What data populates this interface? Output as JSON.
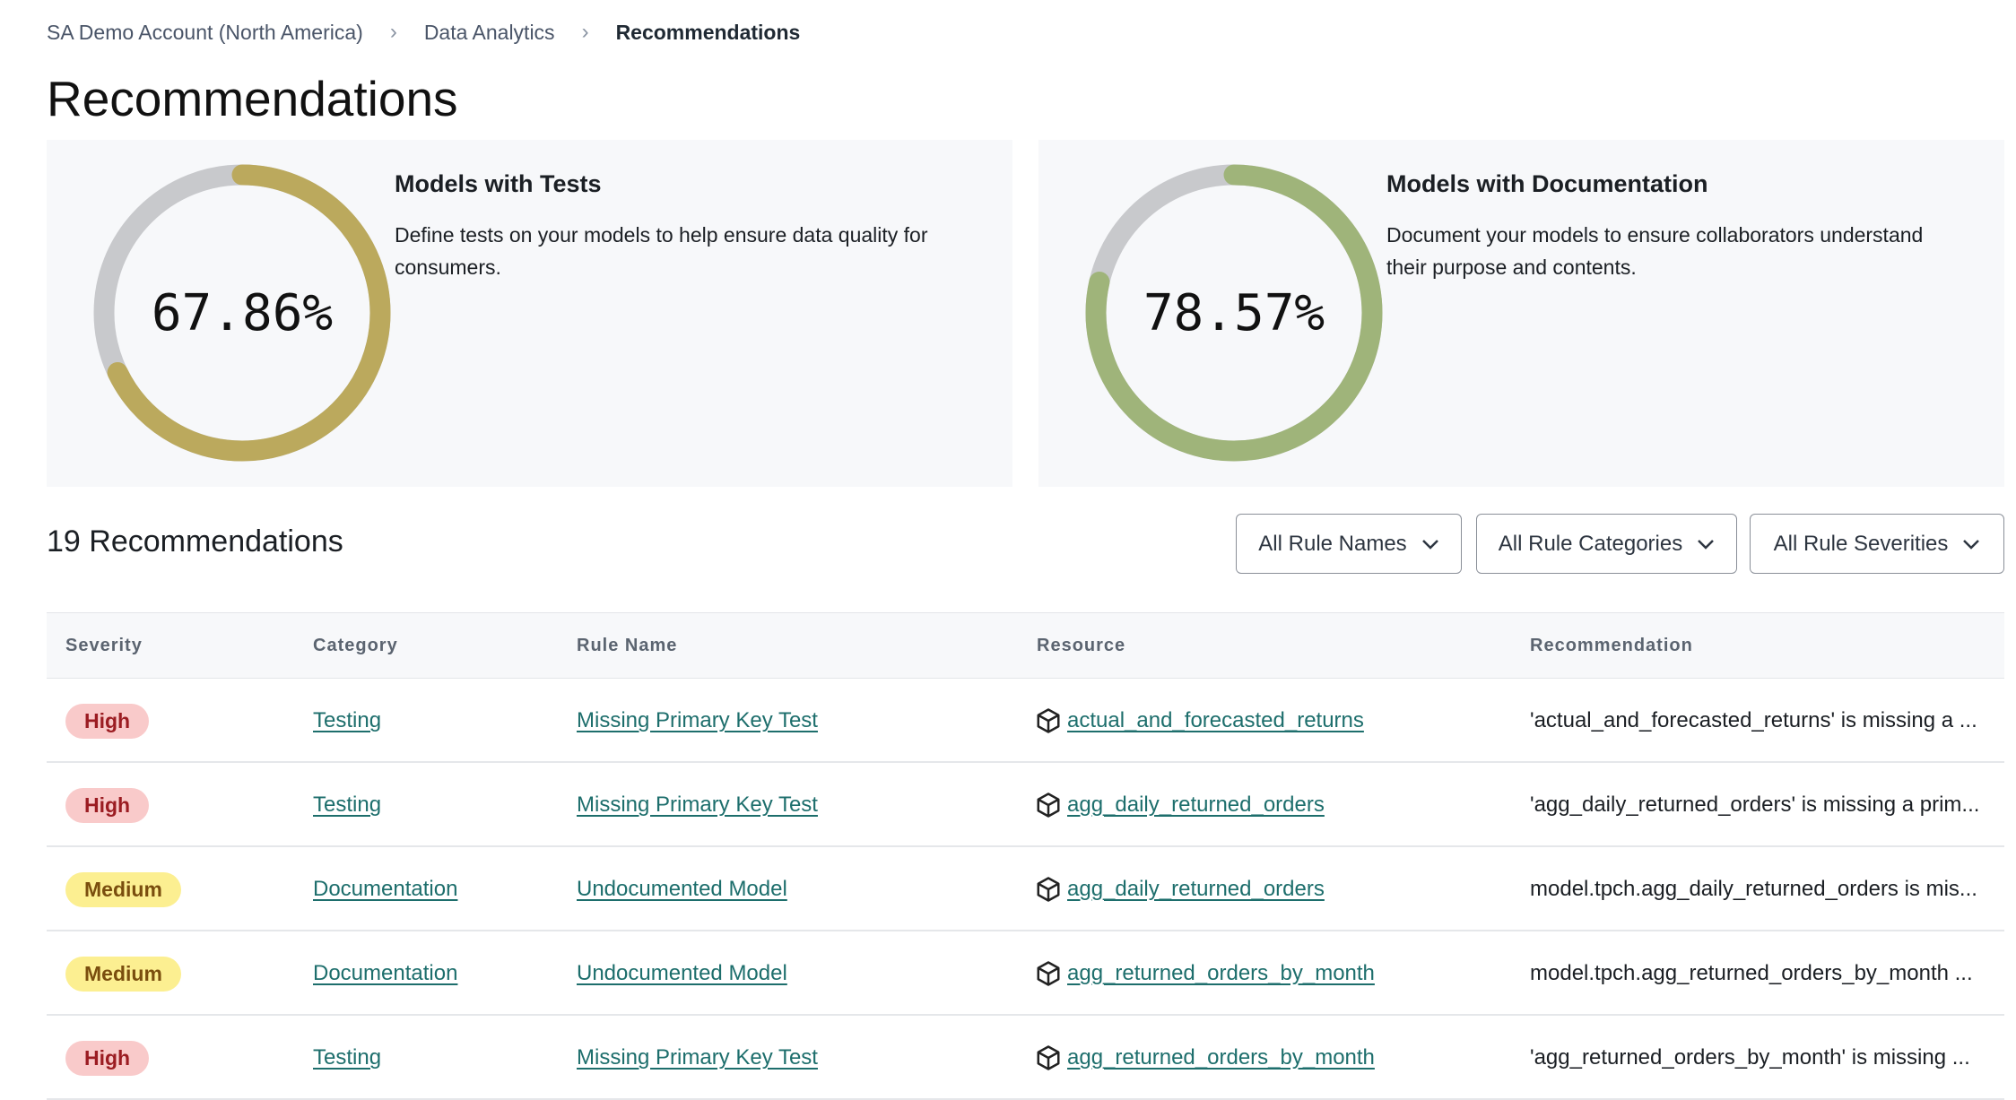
{
  "breadcrumb": [
    "SA Demo Account (North America)",
    "Data Analytics",
    "Recommendations"
  ],
  "page_title": "Recommendations",
  "cards": [
    {
      "title": "Models with Tests",
      "description": "Define tests on your models to help ensure data quality for consumers.",
      "percent_label": "67.86%",
      "percent": 67.86,
      "color": "#bba95d"
    },
    {
      "title": "Models with Documentation",
      "description": "Document your models to ensure collaborators understand their purpose and contents.",
      "percent_label": "78.57%",
      "percent": 78.57,
      "color": "#9fb47a"
    }
  ],
  "ring_track_color": "#c8c9cc",
  "count_label": "19 Recommendations",
  "filters": [
    "All Rule Names",
    "All Rule Categories",
    "All Rule Severities"
  ],
  "table": {
    "headers": [
      "Severity",
      "Category",
      "Rule Name",
      "Resource",
      "Recommendation"
    ],
    "rows": [
      {
        "severity": "High",
        "category": "Testing",
        "rule": "Missing Primary Key Test",
        "resource": "actual_and_forecasted_returns",
        "recommendation": "'actual_and_forecasted_returns' is missing a ..."
      },
      {
        "severity": "High",
        "category": "Testing",
        "rule": "Missing Primary Key Test",
        "resource": "agg_daily_returned_orders",
        "recommendation": "'agg_daily_returned_orders' is missing a prim..."
      },
      {
        "severity": "Medium",
        "category": "Documentation",
        "rule": "Undocumented Model",
        "resource": "agg_daily_returned_orders",
        "recommendation": "model.tpch.agg_daily_returned_orders is mis..."
      },
      {
        "severity": "Medium",
        "category": "Documentation",
        "rule": "Undocumented Model",
        "resource": "agg_returned_orders_by_month",
        "recommendation": "model.tpch.agg_returned_orders_by_month ..."
      },
      {
        "severity": "High",
        "category": "Testing",
        "rule": "Missing Primary Key Test",
        "resource": "agg_returned_orders_by_month",
        "recommendation": "'agg_returned_orders_by_month' is missing ..."
      }
    ]
  }
}
